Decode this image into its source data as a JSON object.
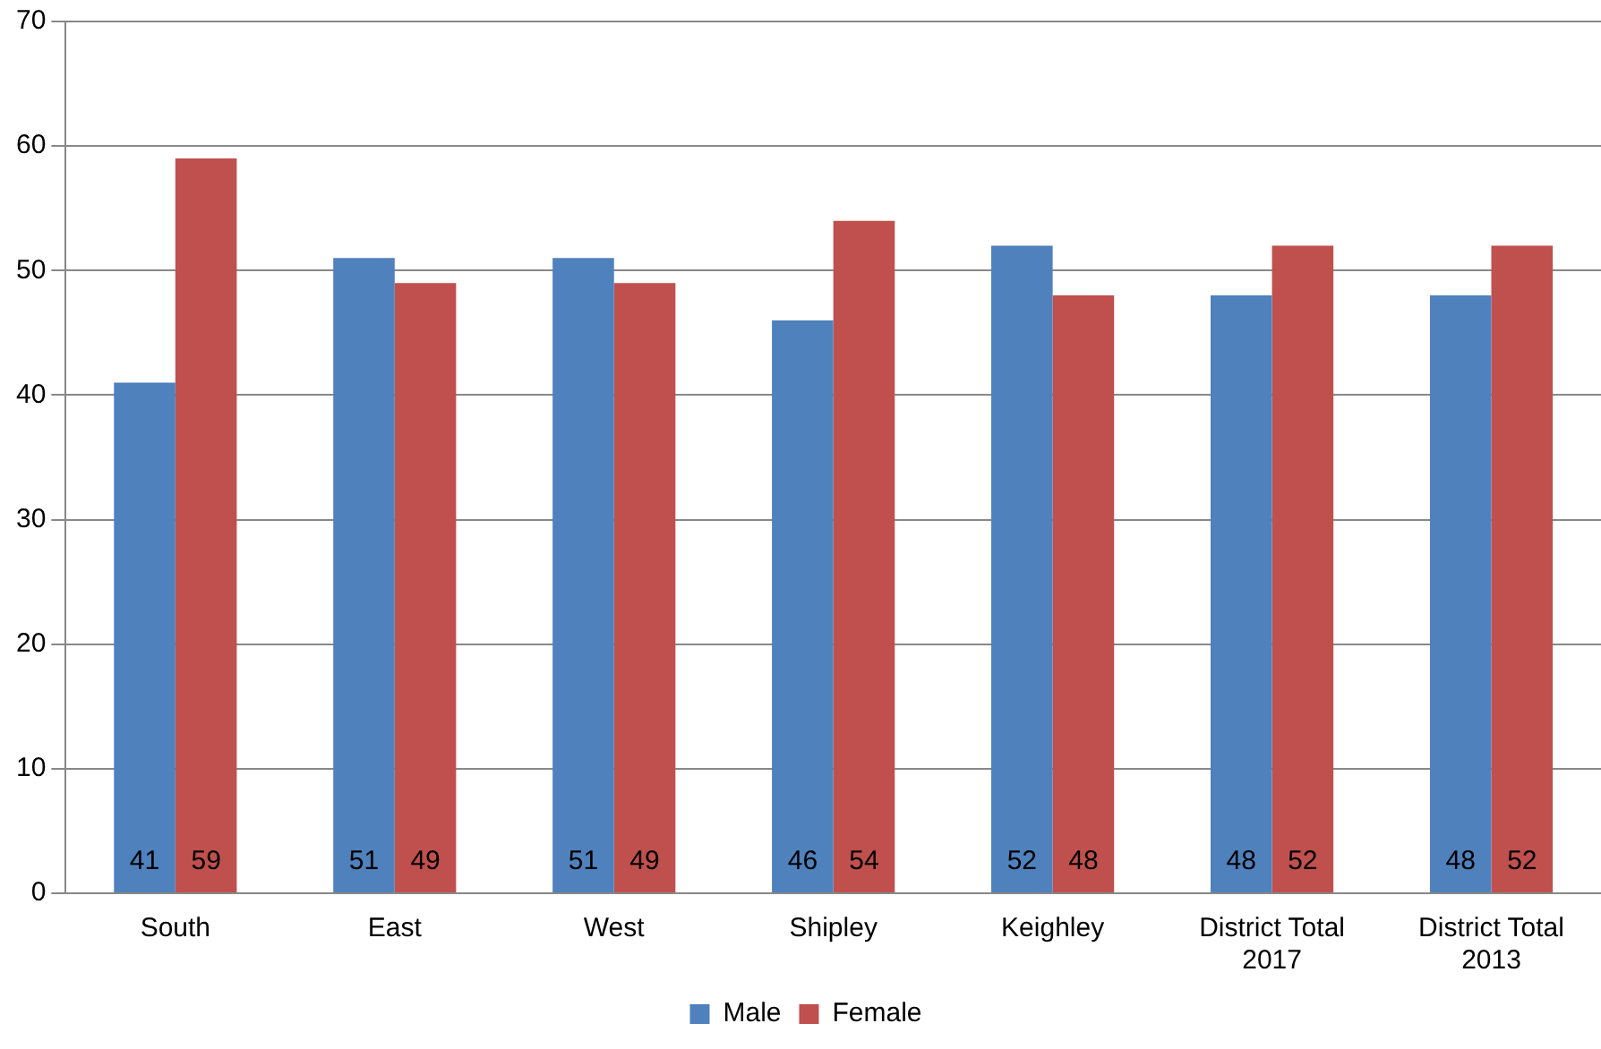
{
  "chart_data": {
    "type": "bar",
    "categories": [
      "South",
      "East",
      "West",
      "Shipley",
      "Keighley",
      "District Total 2017",
      "District Total 2013"
    ],
    "series": [
      {
        "name": "Male",
        "color": "#4f81bd",
        "values": [
          41,
          51,
          51,
          46,
          52,
          48,
          48
        ]
      },
      {
        "name": "Female",
        "color": "#c0504d",
        "values": [
          59,
          49,
          49,
          54,
          48,
          52,
          52
        ]
      }
    ],
    "ylim": [
      0,
      70
    ],
    "yticks": [
      0,
      10,
      20,
      30,
      40,
      50,
      60,
      70
    ],
    "grid": "y",
    "legend": "bottom",
    "data_labels": true
  }
}
